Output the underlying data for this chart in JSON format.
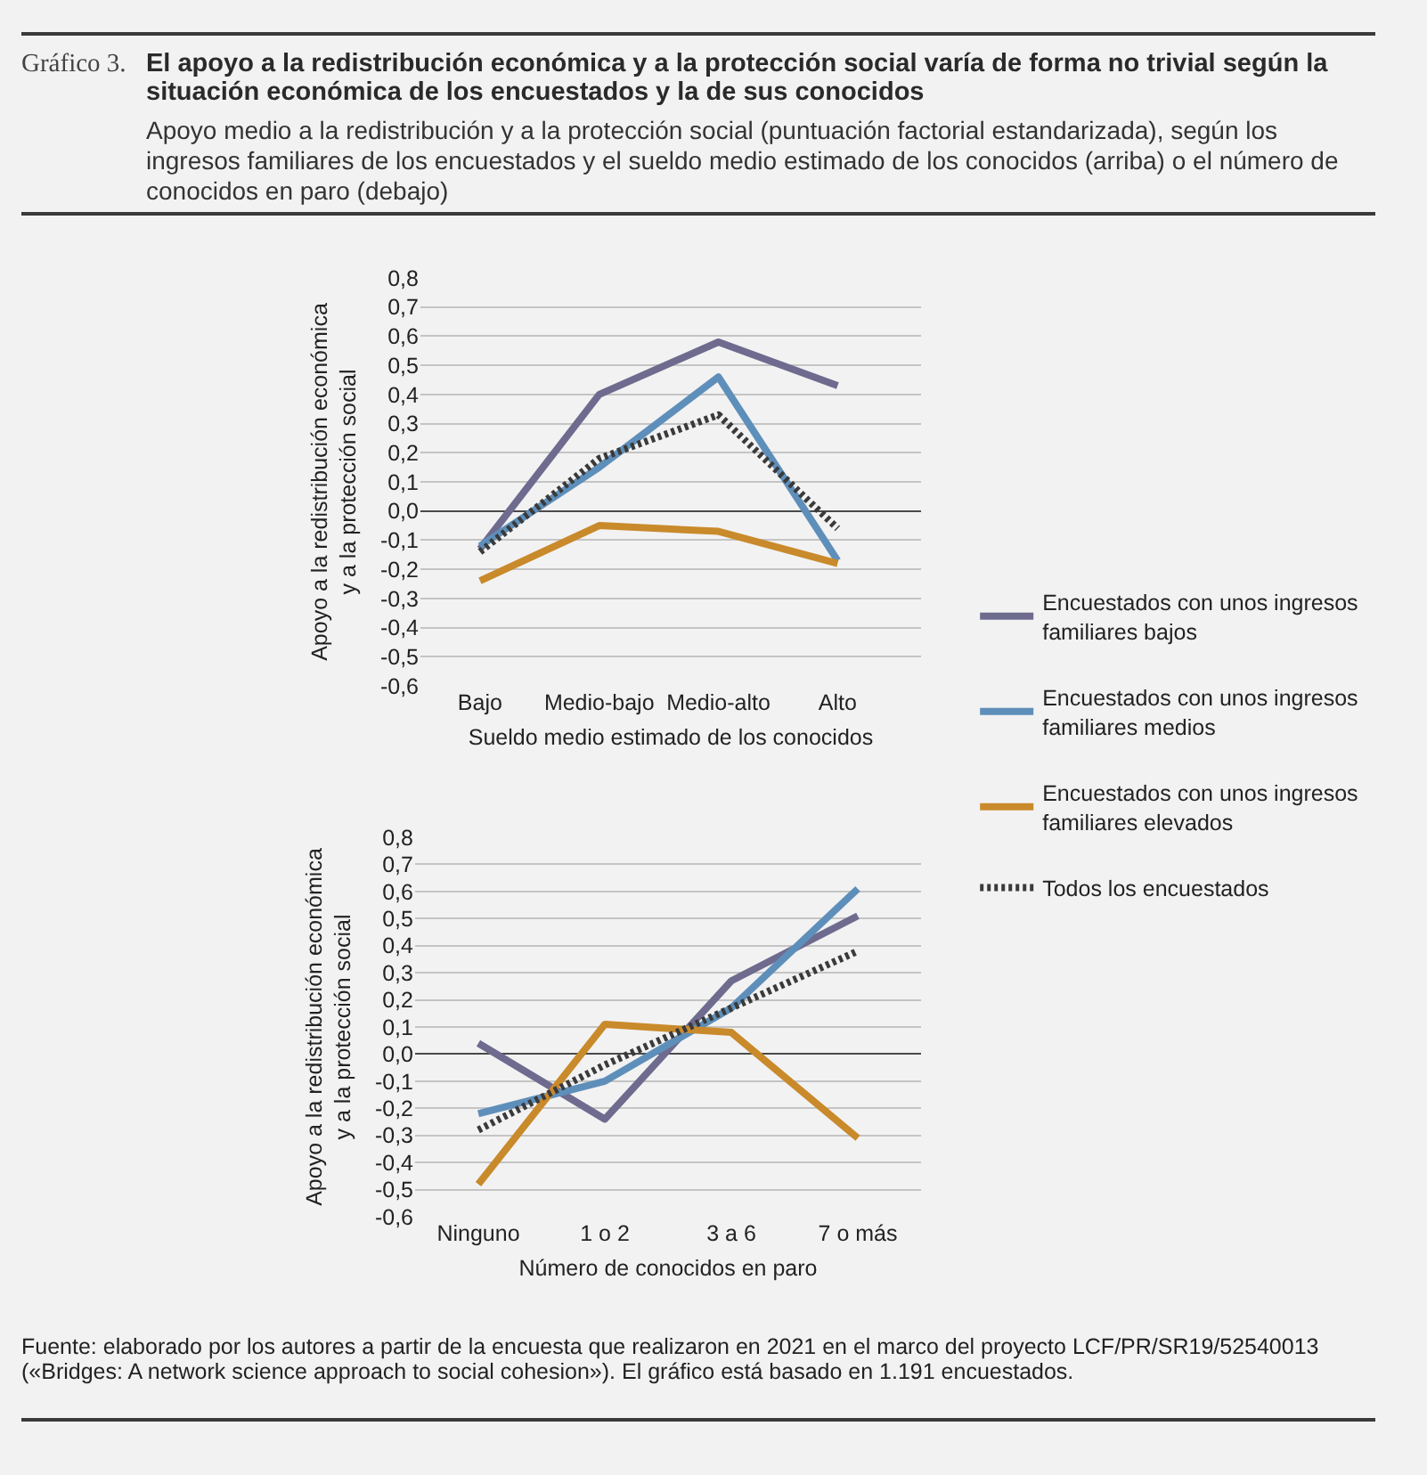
{
  "chart_data": [
    {
      "type": "line",
      "title": "El apoyo a la redistribución económica y a la protección social varía de forma no trivial según la situación económica de los encuestados y la de sus conocidos",
      "subtitle": "Apoyo medio a la redistribución y a la protección social (puntuación factorial estandarizada), según los ingresos familiares de los encuestados y el sueldo medio estimado de los conocidos (arriba) o el número de conocidos en paro (debajo)",
      "annotations": [
        "Gráfico 3."
      ],
      "xlabel": "Sueldo medio estimado de los conocidos",
      "ylabel": "Apoyo a la redistribución económica y a la protección social",
      "categories": [
        "Bajo",
        "Medio-bajo",
        "Medio-alto",
        "Alto"
      ],
      "ylim": [
        -0.6,
        0.8
      ],
      "yticks": [
        {
          "value": -0.6,
          "label": "-0,6"
        },
        {
          "value": -0.5,
          "label": "-0,5"
        },
        {
          "value": -0.4,
          "label": "-0,4"
        },
        {
          "value": -0.3,
          "label": "-0,3"
        },
        {
          "value": -0.2,
          "label": "-0,2"
        },
        {
          "value": -0.1,
          "label": "-0,1"
        },
        {
          "value": 0,
          "label": "0,0"
        },
        {
          "value": 0.1,
          "label": "0,1"
        },
        {
          "value": 0.2,
          "label": "0,2"
        },
        {
          "value": 0.3,
          "label": "0,3"
        },
        {
          "value": 0.4,
          "label": "0,4"
        },
        {
          "value": 0.5,
          "label": "0,5"
        },
        {
          "value": 0.6,
          "label": "0,6"
        },
        {
          "value": 0.7,
          "label": "0,7"
        },
        {
          "value": 0.8,
          "label": "0,8"
        }
      ],
      "grid": "y",
      "legend": "right",
      "marker": "none",
      "series": [
        {
          "name": "Encuestados con unos ingresos familiares bajos",
          "color": "#6e6b8f",
          "line_style": "solid",
          "values": [
            -0.13,
            0.4,
            0.58,
            0.43
          ]
        },
        {
          "name": "Encuestados con unos ingresos familiares medios",
          "color": "#5e8fba",
          "line_style": "solid",
          "values": [
            -0.12,
            0.15,
            0.46,
            -0.17
          ]
        },
        {
          "name": "Encuestados con unos ingresos familiares elevados",
          "color": "#c98a2b",
          "line_style": "solid",
          "values": [
            -0.24,
            -0.05,
            -0.07,
            -0.18
          ]
        },
        {
          "name": "Todos los encuestados",
          "color": "#3a3a3a",
          "line_style": "dotted",
          "values": [
            -0.14,
            0.18,
            0.33,
            -0.06
          ]
        }
      ]
    },
    {
      "type": "line",
      "annotations": [
        "Fuente: elaborado por los autores a partir de la encuesta que realizaron en 2021 en el marco del proyecto LCF/PR/SR19/52540013 («Bridges: A network science approach to social cohesion»). El gráfico está basado en 1.191 encuestados."
      ],
      "xlabel": "Número de conocidos en paro",
      "ylabel": "Apoyo a la redistribución económica y a la protección social",
      "categories": [
        "Ninguno",
        "1 o 2",
        "3 a 6",
        "7 o más"
      ],
      "ylim": [
        -0.6,
        0.8
      ],
      "yticks": [
        {
          "value": -0.6,
          "label": "-0,6"
        },
        {
          "value": -0.5,
          "label": "-0,5"
        },
        {
          "value": -0.4,
          "label": "-0,4"
        },
        {
          "value": -0.3,
          "label": "-0,3"
        },
        {
          "value": -0.2,
          "label": "-0,2"
        },
        {
          "value": -0.1,
          "label": "-0,1"
        },
        {
          "value": 0,
          "label": "0,0"
        },
        {
          "value": 0.1,
          "label": "0,1"
        },
        {
          "value": 0.2,
          "label": "0,2"
        },
        {
          "value": 0.3,
          "label": "0,3"
        },
        {
          "value": 0.4,
          "label": "0,4"
        },
        {
          "value": 0.5,
          "label": "0,5"
        },
        {
          "value": 0.6,
          "label": "0,6"
        },
        {
          "value": 0.7,
          "label": "0,7"
        },
        {
          "value": 0.8,
          "label": "0,8"
        }
      ],
      "grid": "y",
      "legend": false,
      "marker": "none",
      "series": [
        {
          "color": "#6e6b8f",
          "line_style": "solid",
          "values": [
            0.04,
            -0.24,
            0.27,
            0.51
          ]
        },
        {
          "color": "#5e8fba",
          "line_style": "solid",
          "values": [
            -0.22,
            -0.1,
            0.17,
            0.61
          ]
        },
        {
          "color": "#c98a2b",
          "line_style": "solid",
          "values": [
            -0.48,
            0.11,
            0.08,
            -0.31
          ]
        },
        {
          "color": "#3a3a3a",
          "line_style": "dotted",
          "values": [
            -0.28,
            -0.04,
            0.17,
            0.38
          ]
        }
      ]
    }
  ]
}
